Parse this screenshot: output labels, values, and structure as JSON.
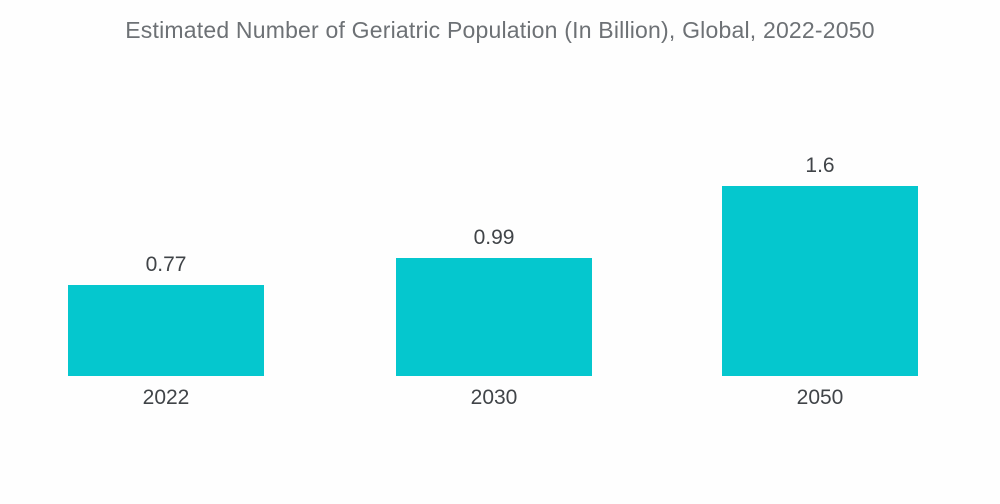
{
  "page": {
    "background_color": "#fefefe"
  },
  "chart_data": {
    "type": "bar",
    "title": "Estimated Number of Geriatric Population (In Billion), Global, 2022-2050",
    "categories": [
      "2022",
      "2030",
      "2050"
    ],
    "values": [
      0.77,
      0.99,
      1.6
    ],
    "value_labels": [
      "0.77",
      "0.99",
      "1.6"
    ],
    "xlabel": "",
    "ylabel": "",
    "ylim": [
      0,
      1.7
    ],
    "grid": false,
    "legend": "none",
    "axes_visible": false,
    "bar_color": "#05c7ce",
    "title_color": "#6d7175",
    "label_color": "#404448"
  }
}
